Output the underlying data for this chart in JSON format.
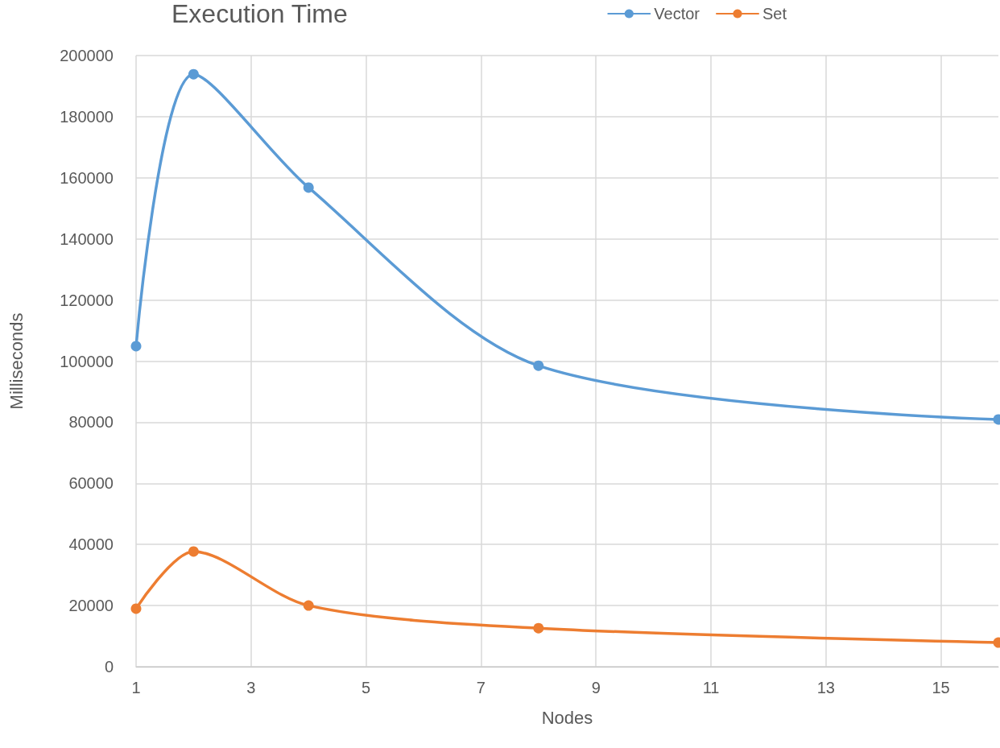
{
  "chart_data": {
    "type": "line",
    "title": "Execution Time",
    "xlabel": "Nodes",
    "ylabel": "Milliseconds",
    "x": [
      1,
      2,
      4,
      8,
      16
    ],
    "series": [
      {
        "name": "Vector",
        "color": "#5b9bd5",
        "values": [
          104900,
          193900,
          156800,
          98500,
          80900
        ]
      },
      {
        "name": "Set",
        "color": "#ed7d31",
        "values": [
          19000,
          37700,
          20000,
          12600,
          7900
        ]
      }
    ],
    "xlim": [
      1,
      16
    ],
    "xticks": [
      1,
      3,
      5,
      7,
      9,
      11,
      13,
      15
    ],
    "ylim": [
      0,
      200000
    ],
    "yticks": [
      0,
      20000,
      40000,
      60000,
      80000,
      100000,
      120000,
      140000,
      160000,
      180000,
      200000
    ],
    "grid": true,
    "legend": "top right",
    "marker": "circle",
    "line_style": "solid"
  }
}
